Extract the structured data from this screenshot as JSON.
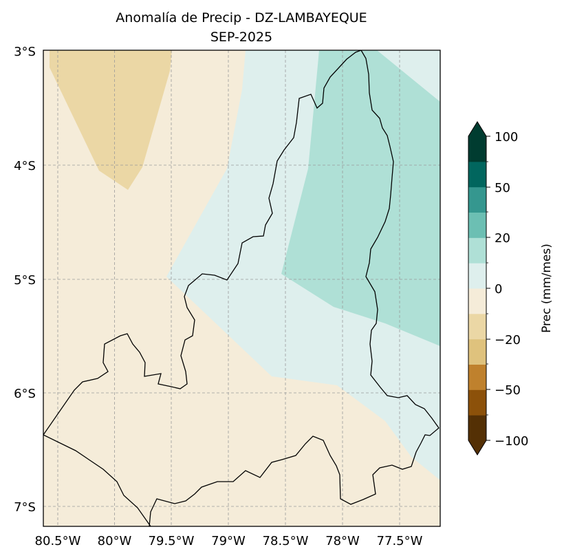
{
  "title": {
    "line1": "Anomalía de Precip - DZ-LAMBAYEQUE",
    "line2": "SEP-2025"
  },
  "map": {
    "lon_range": [
      -80.63,
      -77.32
    ],
    "lat_range": [
      -7.18,
      -3.0
    ],
    "projection": "PlateCarree",
    "gridlines": true,
    "lon_ticks": [
      "80.5°W",
      "80°W",
      "79.5°W",
      "79°W",
      "78.5°W",
      "78°W",
      "77.5°W"
    ],
    "lat_ticks": [
      "3°S",
      "4°S",
      "5°S",
      "6°S",
      "7°S"
    ],
    "anomaly_fields": [
      {
        "class": "-20 to -10",
        "color": "#ebd7a5"
      },
      {
        "class": "-10 to 0",
        "color": "#f5ecd9"
      },
      {
        "class": "0 to 10",
        "color": "#deefed"
      },
      {
        "class": "10 to 20",
        "color": "#afe0d6"
      }
    ],
    "region_outline": "DZ-LAMBAYEQUE"
  },
  "colorbar": {
    "label": "Prec (mm/mes)",
    "tick_labels": [
      "100",
      "50",
      "20",
      "0",
      "−20",
      "−50",
      "−100"
    ],
    "colors": [
      "#543005",
      "#8c510a",
      "#bf812d",
      "#dfc27d",
      "#ebd7a5",
      "#f5ecd9",
      "#deefed",
      "#afe0d6",
      "#6cbfb3",
      "#35978f",
      "#01665e",
      "#003c30"
    ],
    "extend": "both"
  }
}
